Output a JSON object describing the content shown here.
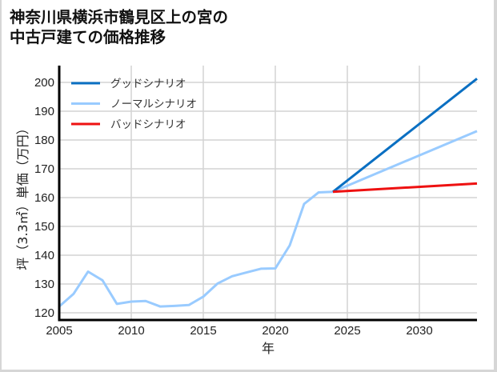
{
  "title": {
    "line1": "神奈川県横浜市鶴見区上の宮の",
    "line2": "中古戸建ての価格推移"
  },
  "colors": {
    "good": "#0a6fc2",
    "normal": "#99cbff",
    "bad": "#ee1111",
    "grid": "#d3d3d3",
    "axis": "#000000"
  },
  "chart_data": {
    "type": "line",
    "title": "神奈川県横浜市鶴見区上の宮の中古戸建ての価格推移",
    "xlabel": "年",
    "ylabel": "坪（3.3㎡）単価（万円）",
    "xlim": [
      2005,
      2034
    ],
    "ylim": [
      118,
      202
    ],
    "x_ticks": [
      2005,
      2010,
      2015,
      2020,
      2025,
      2030
    ],
    "y_ticks": [
      120,
      130,
      140,
      150,
      160,
      170,
      180,
      190,
      200
    ],
    "grid": true,
    "legend_position": "upper left",
    "legend": [
      "グッドシナリオ",
      "ノーマルシナリオ",
      "バッドシナリオ"
    ],
    "historical": {
      "name": "ノーマルシナリオ",
      "x": [
        2005,
        2006,
        2007,
        2008,
        2009,
        2010,
        2011,
        2012,
        2013,
        2014,
        2015,
        2016,
        2017,
        2018,
        2019,
        2020,
        2021,
        2022,
        2023,
        2024
      ],
      "values": [
        122.2,
        126.6,
        134.3,
        131.3,
        123.1,
        123.9,
        124.1,
        122.2,
        122.4,
        122.7,
        125.6,
        130.2,
        132.7,
        134.0,
        135.3,
        135.4,
        143.4,
        157.8,
        161.8,
        162.0
      ]
    },
    "series": [
      {
        "name": "グッドシナリオ",
        "color": "#0a6fc2",
        "x": [
          2024,
          2034
        ],
        "values": [
          162.0,
          201.3
        ]
      },
      {
        "name": "ノーマルシナリオ",
        "color": "#99cbff",
        "x": [
          2024,
          2034
        ],
        "values": [
          162.0,
          183.1
        ]
      },
      {
        "name": "バッドシナリオ",
        "color": "#ee1111",
        "x": [
          2024,
          2034
        ],
        "values": [
          162.0,
          164.9
        ]
      }
    ]
  }
}
